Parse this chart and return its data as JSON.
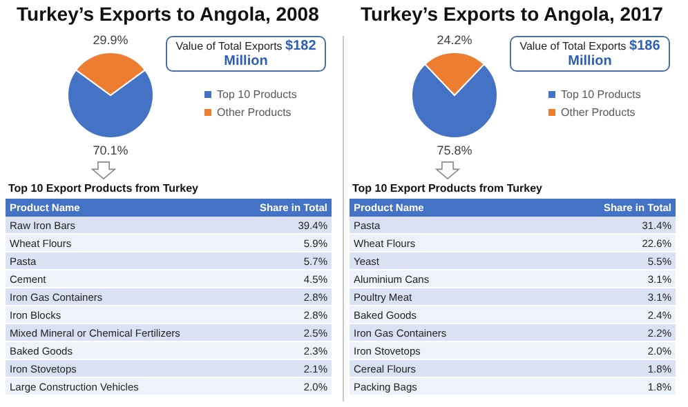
{
  "chart_data": [
    {
      "type": "pie",
      "title": "Turkey’s Exports to Angola, 2008",
      "categories": [
        "Top 10 Products",
        "Other Products"
      ],
      "values": [
        70.1,
        29.9
      ],
      "colors": [
        "#4472c4",
        "#ed7d31"
      ],
      "value_labels": [
        "70.1%",
        "29.9%"
      ],
      "legend": "right",
      "annotations": [
        "Value of Total Exports",
        "$182 Million"
      ]
    },
    {
      "type": "other",
      "title": "Top 10 Export Products from Turkey",
      "xlabel": "Product Name",
      "ylabel": "Share in Total",
      "categories": [
        "Raw Iron Bars",
        "Wheat Flours",
        "Pasta",
        "Cement",
        "Iron Gas Containers",
        "Iron Blocks",
        "Mixed Mineral or Chemical Fertilizers",
        "Baked Goods",
        "Iron Stovetops",
        "Large Construction Vehicles"
      ],
      "values": [
        39.4,
        5.9,
        5.7,
        4.5,
        2.8,
        2.8,
        2.5,
        2.3,
        2.1,
        2.0
      ],
      "value_labels": [
        "39.4%",
        "5.9%",
        "5.7%",
        "4.5%",
        "2.8%",
        "2.8%",
        "2.5%",
        "2.3%",
        "2.1%",
        "2.0%"
      ]
    },
    {
      "type": "pie",
      "title": "Turkey’s Exports to Angola, 2017",
      "categories": [
        "Top 10 Products",
        "Other Products"
      ],
      "values": [
        75.8,
        24.2
      ],
      "colors": [
        "#4472c4",
        "#ed7d31"
      ],
      "value_labels": [
        "75.8%",
        "24.2%"
      ],
      "legend": "right",
      "annotations": [
        "Value of Total Exports",
        "$186 Million"
      ]
    },
    {
      "type": "other",
      "title": "Top 10 Export Products from Turkey",
      "xlabel": "Product Name",
      "ylabel": "Share in Total",
      "categories": [
        "Pasta",
        "Wheat Flours",
        "Yeast",
        "Aluminium Cans",
        "Poultry Meat",
        "Baked Goods",
        "Iron Gas Containers",
        "Iron Stovetops",
        "Cereal Flours",
        "Packing Bags"
      ],
      "values": [
        31.4,
        22.6,
        5.5,
        3.1,
        3.1,
        2.4,
        2.2,
        2.0,
        1.8,
        1.8
      ],
      "value_labels": [
        "31.4%",
        "22.6%",
        "5.5%",
        "3.1%",
        "3.1%",
        "2.4%",
        "2.2%",
        "2.0%",
        "1.8%",
        "1.8%"
      ]
    }
  ]
}
